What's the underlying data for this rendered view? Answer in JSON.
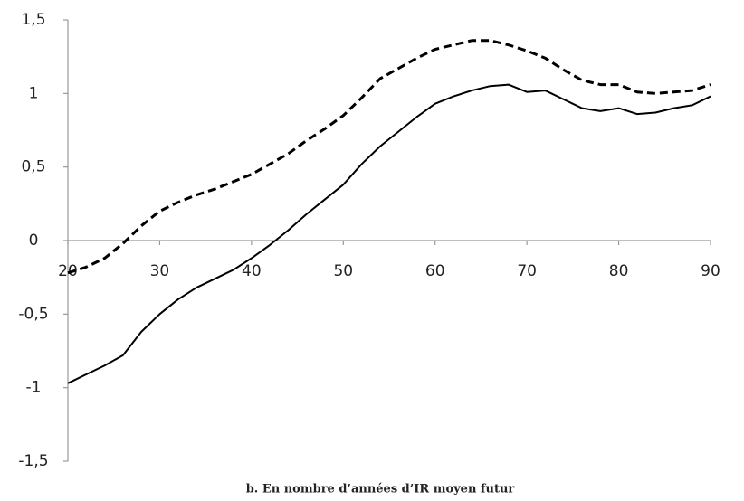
{
  "chart_data": {
    "type": "line",
    "title": "b. En nombre d’années d’IR moyen futur",
    "x": [
      20,
      22,
      24,
      26,
      28,
      30,
      32,
      34,
      36,
      38,
      40,
      42,
      44,
      46,
      48,
      50,
      52,
      54,
      56,
      58,
      60,
      62,
      64,
      66,
      68,
      70,
      72,
      74,
      76,
      78,
      80,
      82,
      84,
      86,
      88,
      90
    ],
    "series": [
      {
        "color": "#000000",
        "style": "solid",
        "values": [
          -0.97,
          -0.91,
          -0.85,
          -0.78,
          -0.62,
          -0.5,
          -0.4,
          -0.32,
          -0.26,
          -0.2,
          -0.12,
          -0.03,
          0.07,
          0.18,
          0.28,
          0.38,
          0.52,
          0.64,
          0.74,
          0.84,
          0.93,
          0.98,
          1.02,
          1.05,
          1.06,
          1.01,
          1.02,
          0.96,
          0.9,
          0.88,
          0.9,
          0.86,
          0.87,
          0.9,
          0.92,
          0.98
        ]
      },
      {
        "color": "#000000",
        "style": "dashed",
        "values": [
          -0.22,
          -0.18,
          -0.12,
          -0.02,
          0.1,
          0.2,
          0.26,
          0.31,
          0.35,
          0.4,
          0.45,
          0.52,
          0.59,
          0.68,
          0.76,
          0.85,
          0.97,
          1.1,
          1.17,
          1.24,
          1.3,
          1.33,
          1.36,
          1.36,
          1.33,
          1.29,
          1.24,
          1.16,
          1.09,
          1.06,
          1.06,
          1.01,
          1.0,
          1.01,
          1.02,
          1.06
        ]
      }
    ],
    "xlim": [
      20,
      90
    ],
    "xticks": [
      20,
      30,
      40,
      50,
      60,
      70,
      80,
      90
    ],
    "ylim": [
      -1.5,
      1.5
    ],
    "yticks": [
      {
        "value": 1.5,
        "label": "1,5"
      },
      1,
      {
        "value": 0.5,
        "label": "0,5"
      },
      0,
      {
        "value": -0.5,
        "label": "-0,5"
      },
      -1,
      {
        "value": -1.5,
        "label": "-1,5"
      }
    ],
    "grid": false
  }
}
